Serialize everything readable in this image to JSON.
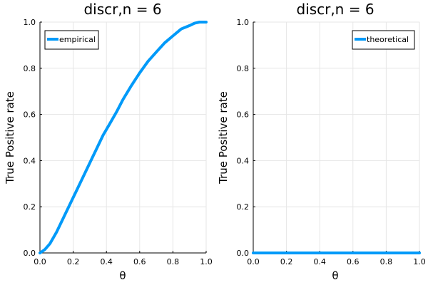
{
  "chart_data": [
    {
      "type": "line",
      "title": "discr,n = 6",
      "xlabel": "θ",
      "ylabel": "True Positive rate",
      "xlim": [
        0,
        1
      ],
      "ylim": [
        0,
        1
      ],
      "xticks": [
        "0.0",
        "0.2",
        "0.4",
        "0.6",
        "0.8",
        "1.0"
      ],
      "yticks": [
        "0.0",
        "0.2",
        "0.4",
        "0.6",
        "0.8",
        "1.0"
      ],
      "grid": true,
      "legend_position": "top-left",
      "series": [
        {
          "name": "empirical",
          "color": "#009AF9",
          "x": [
            0.0,
            0.03,
            0.06,
            0.1,
            0.14,
            0.18,
            0.22,
            0.26,
            0.3,
            0.34,
            0.38,
            0.42,
            0.46,
            0.5,
            0.55,
            0.6,
            0.65,
            0.7,
            0.75,
            0.8,
            0.85,
            0.9,
            0.93,
            0.96,
            1.0
          ],
          "y": [
            0.0,
            0.015,
            0.04,
            0.09,
            0.15,
            0.21,
            0.27,
            0.33,
            0.39,
            0.45,
            0.51,
            0.56,
            0.61,
            0.665,
            0.725,
            0.78,
            0.83,
            0.87,
            0.91,
            0.94,
            0.97,
            0.985,
            0.995,
            1.0,
            1.0
          ]
        }
      ]
    },
    {
      "type": "line",
      "title": "discr,n = 6",
      "xlabel": "θ",
      "ylabel": "True Positive rate",
      "xlim": [
        0,
        1
      ],
      "ylim": [
        0,
        1
      ],
      "xticks": [
        "0.0",
        "0.2",
        "0.4",
        "0.6",
        "0.8",
        "1.0"
      ],
      "yticks": [
        "0.0",
        "0.2",
        "0.4",
        "0.6",
        "0.8",
        "1.0"
      ],
      "grid": true,
      "legend_position": "top-right",
      "series": [
        {
          "name": "theoretical",
          "color": "#009AF9",
          "x": [
            0.0,
            0.2,
            0.4,
            0.6,
            0.8,
            1.0
          ],
          "y": [
            0.0,
            0.0,
            0.0,
            0.0,
            0.0,
            0.0
          ]
        }
      ]
    }
  ]
}
